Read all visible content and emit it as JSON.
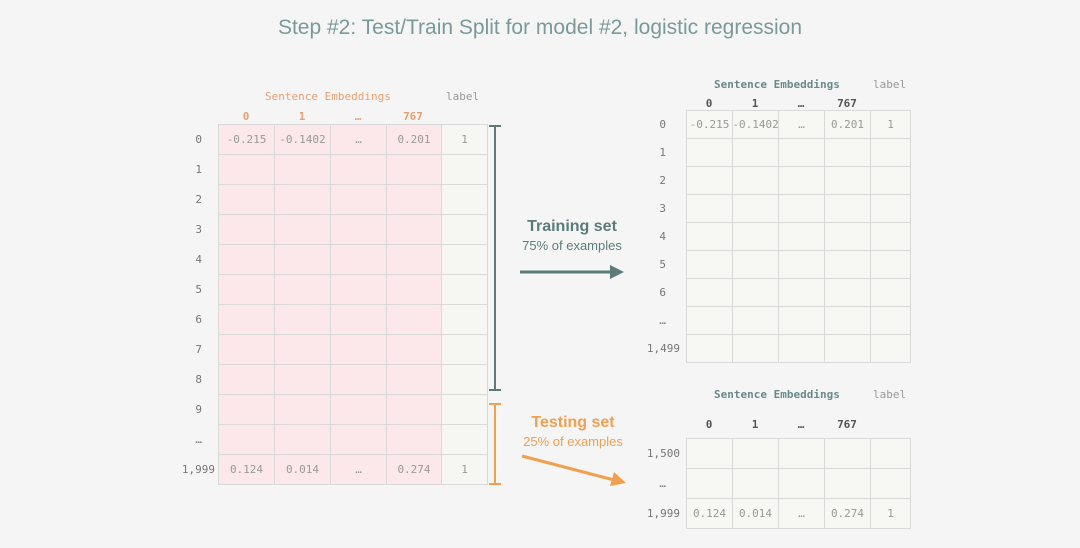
{
  "title": "Step #2: Test/Train Split for model #2, logistic regression",
  "colors": {
    "train": "#5c7c7c",
    "test": "#f0a050",
    "orange_text": "#e8a070",
    "teal_text": "#6a8a8a"
  },
  "left_table": {
    "header": "Sentence Embeddings",
    "label_header": "label",
    "columns": [
      "0",
      "1",
      "…",
      "767"
    ],
    "row_labels": [
      "0",
      "1",
      "2",
      "3",
      "4",
      "5",
      "6",
      "7",
      "8",
      "9",
      "…",
      "1,999"
    ],
    "first_row": [
      "-0.215",
      "-0.1402",
      "…",
      "0.201",
      "1"
    ],
    "last_row": [
      "0.124",
      "0.014",
      "…",
      "0.274",
      "1"
    ]
  },
  "training": {
    "title": "Training set",
    "subtitle": "75% of examples"
  },
  "testing": {
    "title": "Testing set",
    "subtitle": "25% of examples"
  },
  "train_table": {
    "header": "Sentence Embeddings",
    "label_header": "label",
    "columns": [
      "0",
      "1",
      "…",
      "767"
    ],
    "row_labels": [
      "0",
      "1",
      "2",
      "3",
      "4",
      "5",
      "6",
      "…",
      "1,499"
    ],
    "first_row": [
      "-0.215",
      "-0.1402",
      "…",
      "0.201",
      "1"
    ]
  },
  "test_table": {
    "header": "Sentence Embeddings",
    "label_header": "label",
    "columns": [
      "0",
      "1",
      "…",
      "767"
    ],
    "row_labels": [
      "1,500",
      "…",
      "1,999"
    ],
    "last_row": [
      "0.124",
      "0.014",
      "…",
      "0.274",
      "1"
    ]
  }
}
